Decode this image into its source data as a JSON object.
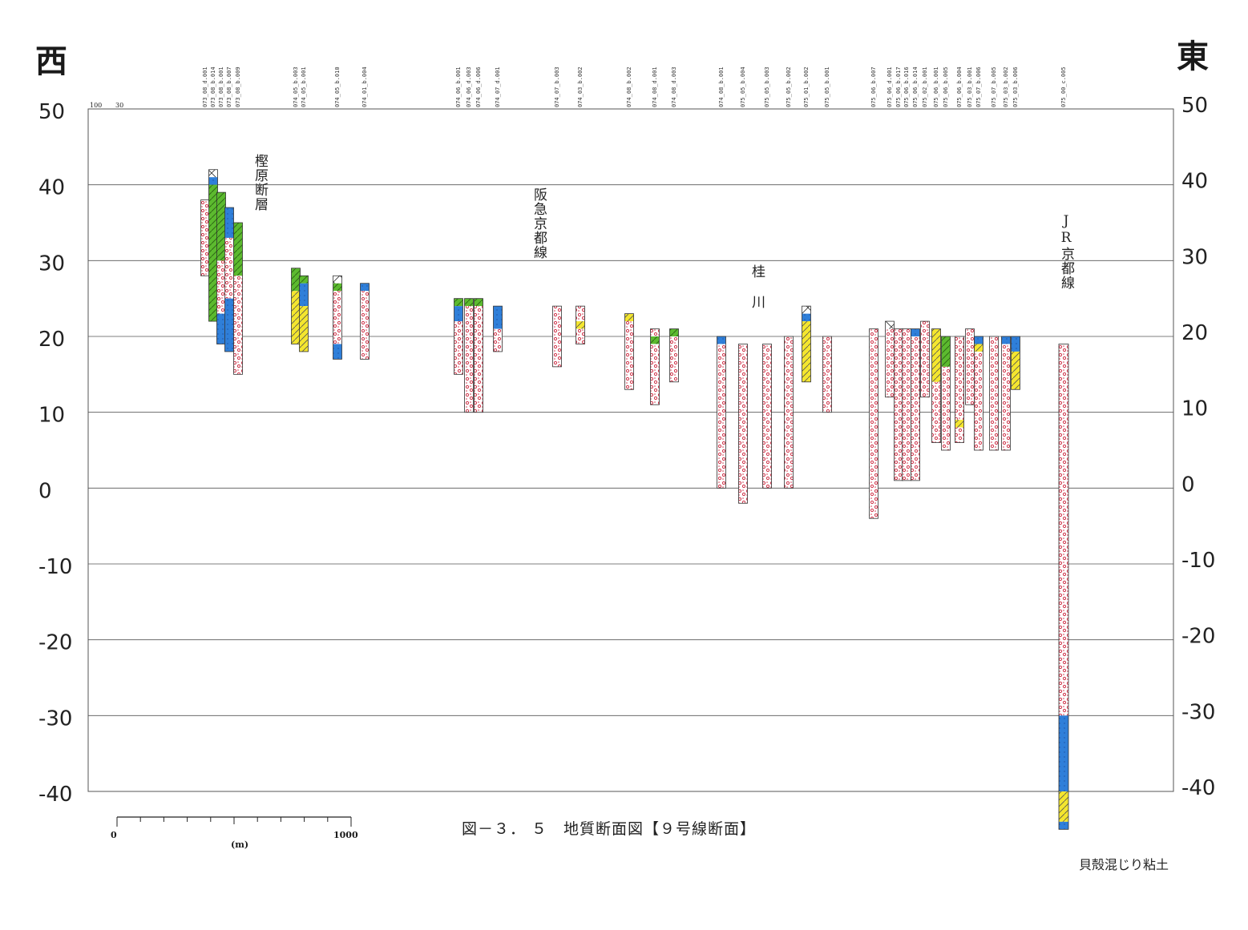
{
  "corners": {
    "west": "西",
    "east": "東"
  },
  "axis": {
    "ticks": [
      "50",
      "40",
      "30",
      "20",
      "10",
      "0",
      "-10",
      "-20",
      "-30",
      "-40"
    ],
    "tick_values": [
      50,
      40,
      30,
      20,
      10,
      0,
      -10,
      -20,
      -30,
      -40
    ],
    "range": [
      -40,
      50
    ]
  },
  "top_notes": {
    "a": "100",
    "b": "30"
  },
  "annotations": {
    "kashiwara_fault": "樫原断層",
    "hankyu_line": "阪急京都線",
    "katsura_river_1": "桂",
    "katsura_river_2": "川",
    "jr_line": "JR京都線",
    "shell_clay": "貝殻混じり粘土"
  },
  "caption": "図－３． ５　地質断面図【９号線断面】",
  "scale_bar": {
    "start": "0",
    "end": "1000",
    "unit": "(m)"
  },
  "legend_colors": {
    "gravel": "#d0354a",
    "clay_blue": "#2f7fd9",
    "silt_green": "#5cba2f",
    "sand_yellow": "#f4e62e",
    "fill_cross": "#333333"
  },
  "boreholes": [
    {
      "id": "073_08_d.001",
      "top": 38,
      "bottom": 28,
      "layers": [
        {
          "from": 38,
          "to": 28,
          "type": "gravel"
        }
      ]
    },
    {
      "id": "073_08_b.014",
      "top": 42,
      "bottom": 22,
      "layers": [
        {
          "from": 42,
          "to": 41,
          "type": "fill_cross"
        },
        {
          "from": 41,
          "to": 40,
          "type": "clay_blue"
        },
        {
          "from": 40,
          "to": 22,
          "type": "silt_green"
        }
      ]
    },
    {
      "id": "073_08_b.001",
      "top": 39,
      "bottom": 19,
      "layers": [
        {
          "from": 39,
          "to": 30,
          "type": "silt_green"
        },
        {
          "from": 30,
          "to": 23,
          "type": "gravel"
        },
        {
          "from": 23,
          "to": 19,
          "type": "clay_blue"
        }
      ]
    },
    {
      "id": "073_08_b.007",
      "top": 37,
      "bottom": 18,
      "layers": [
        {
          "from": 37,
          "to": 33,
          "type": "clay_blue"
        },
        {
          "from": 33,
          "to": 25,
          "type": "gravel"
        },
        {
          "from": 25,
          "to": 18,
          "type": "clay_blue"
        }
      ]
    },
    {
      "id": "073_08_b.009",
      "top": 35,
      "bottom": 15,
      "layers": [
        {
          "from": 35,
          "to": 28,
          "type": "silt_green"
        },
        {
          "from": 28,
          "to": 15,
          "type": "gravel"
        }
      ]
    },
    {
      "id": "074_05_b.003",
      "top": 29,
      "bottom": 19,
      "layers": [
        {
          "from": 29,
          "to": 26,
          "type": "silt_green"
        },
        {
          "from": 26,
          "to": 19,
          "type": "sand_yellow"
        }
      ]
    },
    {
      "id": "074_05_b.001",
      "top": 28,
      "bottom": 18,
      "layers": [
        {
          "from": 28,
          "to": 27,
          "type": "silt_green"
        },
        {
          "from": 27,
          "to": 24,
          "type": "clay_blue"
        },
        {
          "from": 24,
          "to": 18,
          "type": "sand_yellow"
        }
      ]
    },
    {
      "id": "074_05_b.010",
      "top": 28,
      "bottom": 17,
      "layers": [
        {
          "from": 28,
          "to": 27,
          "type": "fill_cross"
        },
        {
          "from": 27,
          "to": 26,
          "type": "silt_green"
        },
        {
          "from": 26,
          "to": 19,
          "type": "gravel"
        },
        {
          "from": 19,
          "to": 17,
          "type": "clay_blue"
        }
      ]
    },
    {
      "id": "074_01_b.004",
      "top": 27,
      "bottom": 17,
      "layers": [
        {
          "from": 27,
          "to": 26,
          "type": "clay_blue"
        },
        {
          "from": 26,
          "to": 17,
          "type": "gravel"
        }
      ]
    },
    {
      "id": "074_06_b.001",
      "top": 25,
      "bottom": 15,
      "layers": [
        {
          "from": 25,
          "to": 24,
          "type": "silt_green"
        },
        {
          "from": 24,
          "to": 22,
          "type": "clay_blue"
        },
        {
          "from": 22,
          "to": 15,
          "type": "gravel"
        }
      ]
    },
    {
      "id": "074_06_d.003",
      "top": 25,
      "bottom": 10,
      "layers": [
        {
          "from": 25,
          "to": 24,
          "type": "silt_green"
        },
        {
          "from": 24,
          "to": 10,
          "type": "gravel"
        }
      ]
    },
    {
      "id": "074_06_d.006",
      "top": 25,
      "bottom": 10,
      "layers": [
        {
          "from": 25,
          "to": 24,
          "type": "silt_green"
        },
        {
          "from": 24,
          "to": 10,
          "type": "gravel"
        }
      ]
    },
    {
      "id": "074_07_d.001",
      "top": 24,
      "bottom": 18,
      "layers": [
        {
          "from": 24,
          "to": 21,
          "type": "clay_blue"
        },
        {
          "from": 21,
          "to": 18,
          "type": "gravel"
        }
      ]
    },
    {
      "id": "074_07_b.003",
      "top": 24,
      "bottom": 16,
      "layers": [
        {
          "from": 24,
          "to": 16,
          "type": "gravel"
        }
      ]
    },
    {
      "id": "074_03_b.002",
      "top": 24,
      "bottom": 19,
      "layers": [
        {
          "from": 24,
          "to": 22,
          "type": "gravel"
        },
        {
          "from": 22,
          "to": 21,
          "type": "sand_yellow"
        },
        {
          "from": 21,
          "to": 19,
          "type": "gravel"
        }
      ]
    },
    {
      "id": "074_08_b.002",
      "top": 23,
      "bottom": 13,
      "layers": [
        {
          "from": 23,
          "to": 22,
          "type": "sand_yellow"
        },
        {
          "from": 22,
          "to": 13,
          "type": "gravel"
        }
      ]
    },
    {
      "id": "074_08_d.001",
      "top": 21,
      "bottom": 11,
      "layers": [
        {
          "from": 21,
          "to": 20,
          "type": "gravel"
        },
        {
          "from": 20,
          "to": 19,
          "type": "silt_green"
        },
        {
          "from": 19,
          "to": 11,
          "type": "gravel"
        }
      ]
    },
    {
      "id": "074_08_d.003",
      "top": 21,
      "bottom": 14,
      "layers": [
        {
          "from": 21,
          "to": 20,
          "type": "silt_green"
        },
        {
          "from": 20,
          "to": 14,
          "type": "gravel"
        }
      ]
    },
    {
      "id": "074_08_b.001",
      "top": 20,
      "bottom": 0,
      "layers": [
        {
          "from": 20,
          "to": 19,
          "type": "clay_blue"
        },
        {
          "from": 19,
          "to": 0,
          "type": "gravel"
        }
      ]
    },
    {
      "id": "075_05_b.004",
      "top": 19,
      "bottom": -2,
      "layers": [
        {
          "from": 19,
          "to": -2,
          "type": "gravel"
        }
      ]
    },
    {
      "id": "075_05_b.003",
      "top": 19,
      "bottom": 0,
      "layers": [
        {
          "from": 19,
          "to": 0,
          "type": "gravel"
        }
      ]
    },
    {
      "id": "075_05_b.002",
      "top": 20,
      "bottom": 0,
      "layers": [
        {
          "from": 20,
          "to": 0,
          "type": "gravel"
        }
      ]
    },
    {
      "id": "075_01_b.002",
      "top": 24,
      "bottom": 14,
      "layers": [
        {
          "from": 24,
          "to": 23,
          "type": "fill_cross"
        },
        {
          "from": 23,
          "to": 22,
          "type": "clay_blue"
        },
        {
          "from": 22,
          "to": 14,
          "type": "sand_yellow"
        }
      ]
    },
    {
      "id": "075_05_b.001",
      "top": 20,
      "bottom": 10,
      "layers": [
        {
          "from": 20,
          "to": 10,
          "type": "gravel"
        }
      ]
    },
    {
      "id": "075_06_b.007",
      "top": 21,
      "bottom": -4,
      "layers": [
        {
          "from": 21,
          "to": -4,
          "type": "gravel"
        }
      ]
    },
    {
      "id": "075_06_d.001",
      "top": 22,
      "bottom": 12,
      "layers": [
        {
          "from": 22,
          "to": 21,
          "type": "fill_cross"
        },
        {
          "from": 21,
          "to": 12,
          "type": "gravel"
        }
      ]
    },
    {
      "id": "075_06_b.017",
      "top": 21,
      "bottom": 1,
      "layers": [
        {
          "from": 21,
          "to": 1,
          "type": "gravel"
        }
      ]
    },
    {
      "id": "075_06_b.016",
      "top": 21,
      "bottom": 1,
      "layers": [
        {
          "from": 21,
          "to": 1,
          "type": "gravel"
        }
      ]
    },
    {
      "id": "075_06_b.014",
      "top": 21,
      "bottom": 1,
      "layers": [
        {
          "from": 21,
          "to": 20,
          "type": "clay_blue"
        },
        {
          "from": 20,
          "to": 1,
          "type": "gravel"
        }
      ]
    },
    {
      "id": "075_02_b.001",
      "top": 22,
      "bottom": 12,
      "layers": [
        {
          "from": 22,
          "to": 12,
          "type": "gravel"
        }
      ]
    },
    {
      "id": "075_06_b.001",
      "top": 21,
      "bottom": 6,
      "layers": [
        {
          "from": 21,
          "to": 19,
          "type": "sand_yellow"
        },
        {
          "from": 19,
          "to": 14,
          "type": "sand_yellow"
        },
        {
          "from": 14,
          "to": 6,
          "type": "gravel"
        }
      ]
    },
    {
      "id": "075_06_b.005",
      "top": 20,
      "bottom": 5,
      "layers": [
        {
          "from": 20,
          "to": 16,
          "type": "silt_green"
        },
        {
          "from": 16,
          "to": 5,
          "type": "gravel"
        }
      ]
    },
    {
      "id": "075_06_b.004",
      "top": 20,
      "bottom": 6,
      "layers": [
        {
          "from": 20,
          "to": 9,
          "type": "gravel"
        },
        {
          "from": 9,
          "to": 8,
          "type": "sand_yellow"
        },
        {
          "from": 8,
          "to": 6,
          "type": "gravel"
        }
      ]
    },
    {
      "id": "075_03_b.001",
      "top": 21,
      "bottom": 11,
      "layers": [
        {
          "from": 21,
          "to": 11,
          "type": "gravel"
        }
      ]
    },
    {
      "id": "075_07_b.006",
      "top": 20,
      "bottom": 5,
      "layers": [
        {
          "from": 20,
          "to": 19,
          "type": "clay_blue"
        },
        {
          "from": 19,
          "to": 18,
          "type": "sand_yellow"
        },
        {
          "from": 18,
          "to": 5,
          "type": "gravel"
        }
      ]
    },
    {
      "id": "075_07_b.005",
      "top": 20,
      "bottom": 5,
      "layers": [
        {
          "from": 20,
          "to": 5,
          "type": "gravel"
        }
      ]
    },
    {
      "id": "075_03_b.002",
      "top": 20,
      "bottom": 5,
      "layers": [
        {
          "from": 20,
          "to": 19,
          "type": "clay_blue"
        },
        {
          "from": 19,
          "to": 5,
          "type": "gravel"
        }
      ]
    },
    {
      "id": "075_03_b.006",
      "top": 20,
      "bottom": 13,
      "layers": [
        {
          "from": 20,
          "to": 18,
          "type": "clay_blue"
        },
        {
          "from": 18,
          "to": 13,
          "type": "sand_yellow"
        }
      ]
    },
    {
      "id": "075_00_c.005",
      "top": 19,
      "bottom": -45,
      "layers": [
        {
          "from": 19,
          "to": -30,
          "type": "gravel"
        },
        {
          "from": -30,
          "to": -40,
          "type": "clay_blue"
        },
        {
          "from": -40,
          "to": -44,
          "type": "sand_yellow"
        },
        {
          "from": -44,
          "to": -45,
          "type": "clay_blue"
        }
      ]
    }
  ]
}
